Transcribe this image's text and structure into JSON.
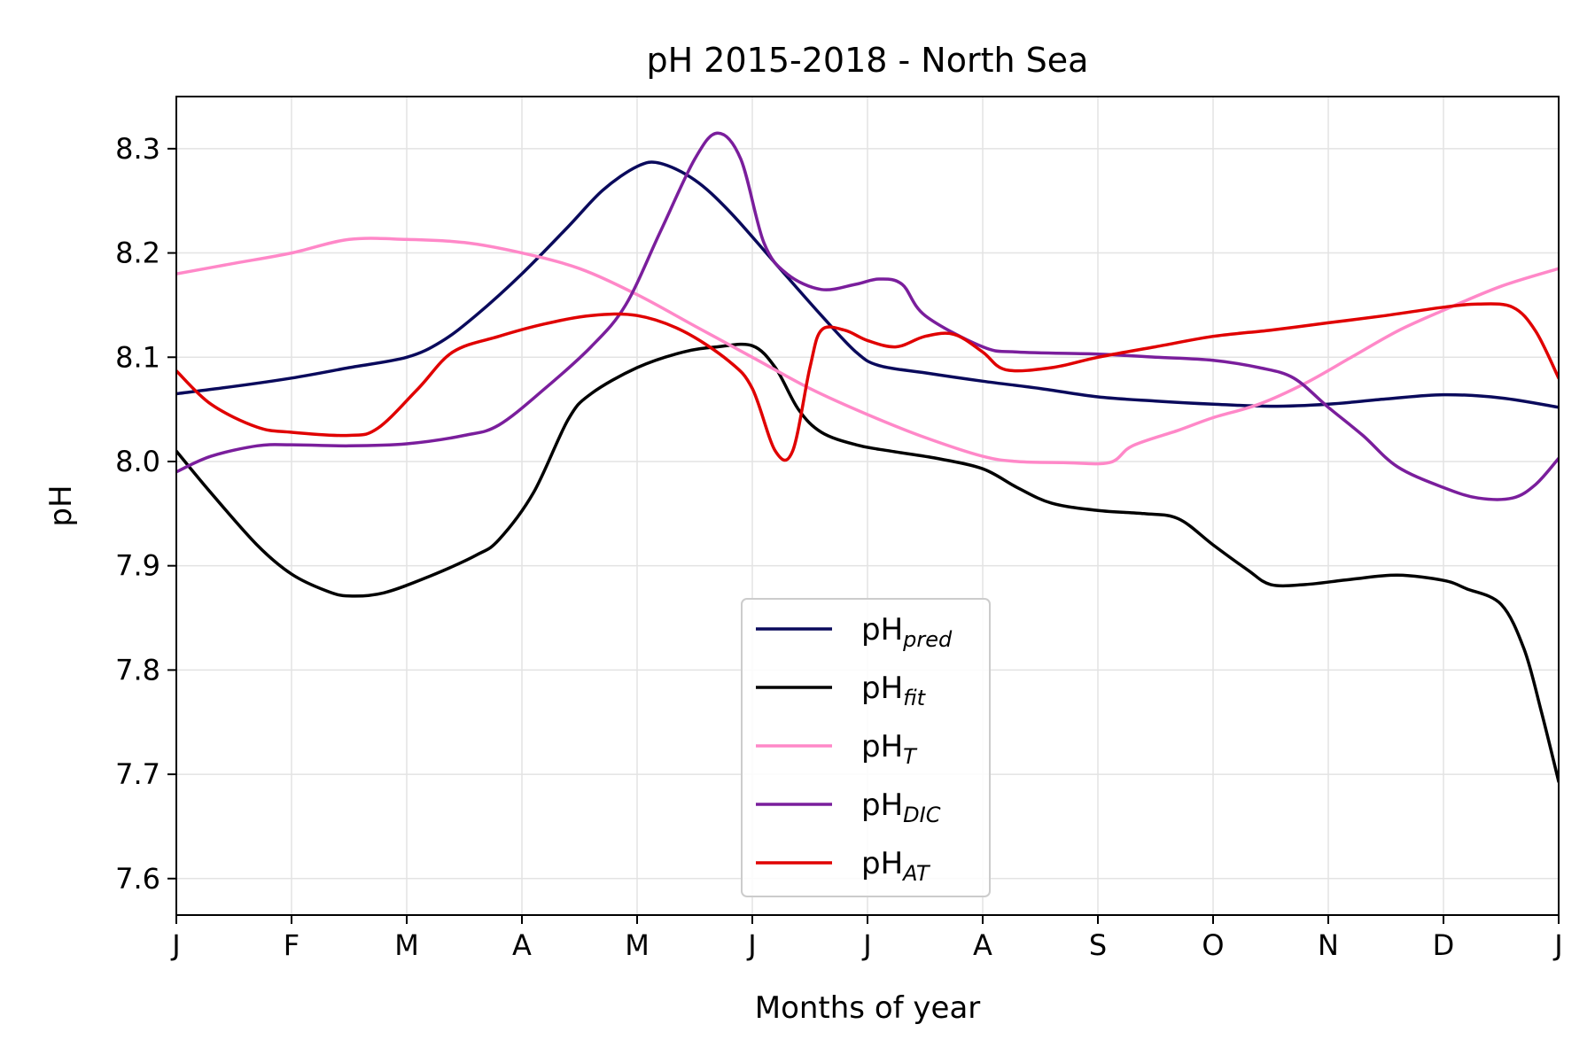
{
  "chart_data": {
    "type": "line",
    "title": "pH 2015-2018 - North Sea",
    "xlabel": "Months of year",
    "ylabel": "pH",
    "x_ticks": [
      "J",
      "F",
      "M",
      "A",
      "M",
      "J",
      "J",
      "A",
      "S",
      "O",
      "N",
      "D",
      "J"
    ],
    "xlim": [
      0,
      12
    ],
    "ylim": [
      7.565,
      8.35
    ],
    "y_ticks": [
      "7.6",
      "7.7",
      "7.8",
      "7.9",
      "8.0",
      "8.1",
      "8.2",
      "8.3"
    ],
    "grid": true,
    "legend_position": "lower-center",
    "series": [
      {
        "name": "pH",
        "subscript": "pred",
        "color": "#0a0a5c",
        "points": [
          [
            0,
            8.065
          ],
          [
            0.5,
            8.072
          ],
          [
            1,
            8.08
          ],
          [
            1.5,
            8.09
          ],
          [
            2,
            8.1
          ],
          [
            2.3,
            8.115
          ],
          [
            2.6,
            8.14
          ],
          [
            3,
            8.18
          ],
          [
            3.4,
            8.225
          ],
          [
            3.7,
            8.26
          ],
          [
            4,
            8.283
          ],
          [
            4.2,
            8.286
          ],
          [
            4.5,
            8.27
          ],
          [
            4.8,
            8.24
          ],
          [
            5.2,
            8.19
          ],
          [
            5.6,
            8.14
          ],
          [
            5.9,
            8.105
          ],
          [
            6.1,
            8.092
          ],
          [
            6.5,
            8.085
          ],
          [
            7,
            8.077
          ],
          [
            7.5,
            8.07
          ],
          [
            8,
            8.062
          ],
          [
            8.5,
            8.058
          ],
          [
            9,
            8.055
          ],
          [
            9.5,
            8.053
          ],
          [
            10,
            8.055
          ],
          [
            10.5,
            8.06
          ],
          [
            11,
            8.064
          ],
          [
            11.5,
            8.061
          ],
          [
            12,
            8.052
          ]
        ]
      },
      {
        "name": "pH",
        "subscript": "fit",
        "color": "#000000",
        "points": [
          [
            0,
            8.01
          ],
          [
            0.3,
            7.97
          ],
          [
            0.7,
            7.92
          ],
          [
            1,
            7.892
          ],
          [
            1.3,
            7.876
          ],
          [
            1.5,
            7.871
          ],
          [
            1.8,
            7.874
          ],
          [
            2.2,
            7.89
          ],
          [
            2.6,
            7.91
          ],
          [
            2.8,
            7.925
          ],
          [
            3.1,
            7.97
          ],
          [
            3.4,
            8.04
          ],
          [
            3.6,
            8.065
          ],
          [
            4,
            8.09
          ],
          [
            4.4,
            8.105
          ],
          [
            4.7,
            8.11
          ],
          [
            5,
            8.111
          ],
          [
            5.2,
            8.09
          ],
          [
            5.4,
            8.05
          ],
          [
            5.6,
            8.028
          ],
          [
            5.9,
            8.016
          ],
          [
            6.2,
            8.01
          ],
          [
            6.6,
            8.003
          ],
          [
            7,
            7.993
          ],
          [
            7.3,
            7.975
          ],
          [
            7.6,
            7.96
          ],
          [
            8,
            7.953
          ],
          [
            8.4,
            7.95
          ],
          [
            8.7,
            7.945
          ],
          [
            9,
            7.92
          ],
          [
            9.3,
            7.896
          ],
          [
            9.5,
            7.882
          ],
          [
            9.8,
            7.882
          ],
          [
            10.2,
            7.887
          ],
          [
            10.6,
            7.891
          ],
          [
            11,
            7.886
          ],
          [
            11.2,
            7.878
          ],
          [
            11.5,
            7.863
          ],
          [
            11.7,
            7.82
          ],
          [
            11.85,
            7.76
          ],
          [
            12,
            7.693
          ]
        ]
      },
      {
        "name": "pH",
        "subscript": "T",
        "color": "#ff88c8",
        "points": [
          [
            0,
            8.18
          ],
          [
            0.5,
            8.19
          ],
          [
            1,
            8.2
          ],
          [
            1.5,
            8.213
          ],
          [
            2,
            8.213
          ],
          [
            2.5,
            8.21
          ],
          [
            3,
            8.2
          ],
          [
            3.5,
            8.185
          ],
          [
            4,
            8.16
          ],
          [
            4.5,
            8.13
          ],
          [
            5,
            8.1
          ],
          [
            5.5,
            8.07
          ],
          [
            6,
            8.045
          ],
          [
            6.5,
            8.023
          ],
          [
            7,
            8.005
          ],
          [
            7.3,
            8
          ],
          [
            7.7,
            7.999
          ],
          [
            8.1,
            7.999
          ],
          [
            8.3,
            8.015
          ],
          [
            8.7,
            8.03
          ],
          [
            9,
            8.042
          ],
          [
            9.4,
            8.055
          ],
          [
            9.8,
            8.075
          ],
          [
            10.2,
            8.1
          ],
          [
            10.6,
            8.125
          ],
          [
            11,
            8.145
          ],
          [
            11.5,
            8.168
          ],
          [
            12,
            8.185
          ]
        ]
      },
      {
        "name": "pH",
        "subscript": "DIC",
        "color": "#7a1e9c",
        "points": [
          [
            0,
            7.99
          ],
          [
            0.3,
            8.005
          ],
          [
            0.7,
            8.015
          ],
          [
            1,
            8.016
          ],
          [
            1.5,
            8.015
          ],
          [
            2,
            8.017
          ],
          [
            2.5,
            8.025
          ],
          [
            2.8,
            8.035
          ],
          [
            3.2,
            8.07
          ],
          [
            3.6,
            8.11
          ],
          [
            3.9,
            8.15
          ],
          [
            4.2,
            8.22
          ],
          [
            4.5,
            8.29
          ],
          [
            4.7,
            8.315
          ],
          [
            4.9,
            8.29
          ],
          [
            5.1,
            8.21
          ],
          [
            5.3,
            8.18
          ],
          [
            5.6,
            8.165
          ],
          [
            5.9,
            8.17
          ],
          [
            6.1,
            8.175
          ],
          [
            6.3,
            8.17
          ],
          [
            6.5,
            8.14
          ],
          [
            7,
            8.11
          ],
          [
            7.3,
            8.105
          ],
          [
            8,
            8.103
          ],
          [
            8.5,
            8.1
          ],
          [
            9,
            8.097
          ],
          [
            9.4,
            8.09
          ],
          [
            9.7,
            8.08
          ],
          [
            10,
            8.052
          ],
          [
            10.3,
            8.025
          ],
          [
            10.6,
            7.995
          ],
          [
            11,
            7.975
          ],
          [
            11.3,
            7.965
          ],
          [
            11.6,
            7.965
          ],
          [
            11.8,
            7.978
          ],
          [
            12,
            8.003
          ]
        ]
      },
      {
        "name": "pH",
        "subscript": "AT",
        "color": "#e00000",
        "points": [
          [
            0,
            8.087
          ],
          [
            0.3,
            8.055
          ],
          [
            0.7,
            8.033
          ],
          [
            1,
            8.028
          ],
          [
            1.5,
            8.025
          ],
          [
            1.75,
            8.032
          ],
          [
            2.1,
            8.07
          ],
          [
            2.4,
            8.105
          ],
          [
            2.8,
            8.12
          ],
          [
            3.2,
            8.132
          ],
          [
            3.6,
            8.14
          ],
          [
            4,
            8.14
          ],
          [
            4.4,
            8.125
          ],
          [
            4.8,
            8.096
          ],
          [
            5,
            8.07
          ],
          [
            5.2,
            8.01
          ],
          [
            5.35,
            8.01
          ],
          [
            5.5,
            8.09
          ],
          [
            5.6,
            8.126
          ],
          [
            5.8,
            8.126
          ],
          [
            6,
            8.116
          ],
          [
            6.25,
            8.11
          ],
          [
            6.5,
            8.12
          ],
          [
            6.75,
            8.122
          ],
          [
            7,
            8.105
          ],
          [
            7.2,
            8.088
          ],
          [
            7.6,
            8.09
          ],
          [
            8,
            8.1
          ],
          [
            8.5,
            8.11
          ],
          [
            9,
            8.12
          ],
          [
            9.5,
            8.126
          ],
          [
            10,
            8.133
          ],
          [
            10.5,
            8.14
          ],
          [
            11,
            8.148
          ],
          [
            11.3,
            8.151
          ],
          [
            11.6,
            8.148
          ],
          [
            11.8,
            8.125
          ],
          [
            12,
            8.08
          ]
        ]
      }
    ]
  }
}
